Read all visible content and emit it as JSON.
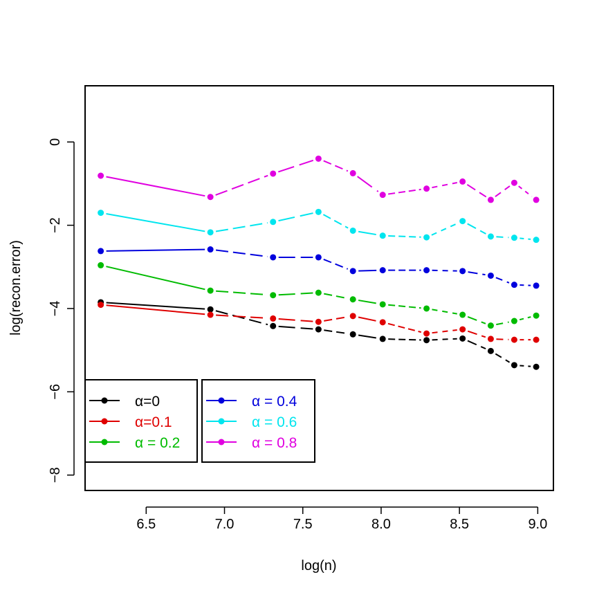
{
  "chart_data": {
    "type": "line",
    "title": "",
    "xlabel": "log(n)",
    "ylabel": "log(recon.error)",
    "xlim": [
      6.11,
      9.1
    ],
    "ylim": [
      -8.37,
      1.35
    ],
    "xticks": [
      6.5,
      7.0,
      7.5,
      8.0,
      8.5,
      9.0
    ],
    "xtick_labels": [
      "6.5",
      "7.0",
      "7.5",
      "8.0",
      "8.5",
      "9.0"
    ],
    "yticks": [
      0,
      -2,
      -4,
      -6,
      -8
    ],
    "ytick_labels": [
      "0",
      "−2",
      "−4",
      "−6",
      "−8"
    ],
    "x": [
      6.21,
      6.91,
      7.31,
      7.6,
      7.82,
      8.01,
      8.29,
      8.52,
      8.7,
      8.85,
      8.99
    ],
    "series": [
      {
        "name": "0",
        "color": "#000000",
        "values": [
          -3.85,
          -4.02,
          -4.42,
          -4.5,
          -4.62,
          -4.73,
          -4.76,
          -4.72,
          -5.02,
          -5.36,
          -5.4
        ]
      },
      {
        "name": "0.1",
        "color": "#df0000",
        "values": [
          -3.91,
          -4.15,
          -4.24,
          -4.32,
          -4.18,
          -4.33,
          -4.6,
          -4.5,
          -4.73,
          -4.75,
          -4.75
        ]
      },
      {
        "name": " = 0.2",
        "color": "#00bb00",
        "values": [
          -2.96,
          -3.57,
          -3.68,
          -3.62,
          -3.78,
          -3.9,
          -4.0,
          -4.15,
          -4.41,
          -4.3,
          -4.17
        ]
      },
      {
        "name": " = 0.4",
        "color": "#0000dd",
        "values": [
          -2.62,
          -2.58,
          -2.77,
          -2.77,
          -3.1,
          -3.08,
          -3.08,
          -3.1,
          -3.21,
          -3.43,
          -3.45
        ]
      },
      {
        "name": " = 0.6",
        "color": "#00e5ee",
        "values": [
          -1.7,
          -2.17,
          -1.92,
          -1.68,
          -2.13,
          -2.25,
          -2.29,
          -1.9,
          -2.27,
          -2.3,
          -2.35
        ]
      },
      {
        "name": " = 0.8",
        "color": "#e000e0",
        "values": [
          -0.81,
          -1.32,
          -0.76,
          -0.4,
          -0.75,
          -1.27,
          -1.12,
          -0.95,
          -1.39,
          -0.98,
          -1.39
        ]
      }
    ],
    "legend": {
      "placement": "bottom-left",
      "symbol": "α",
      "columns": [
        [
          0,
          1,
          2
        ],
        [
          3,
          4,
          5
        ]
      ]
    }
  }
}
